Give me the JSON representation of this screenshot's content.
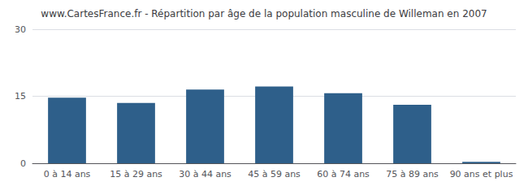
{
  "chart_data": {
    "type": "bar",
    "title": "www.CartesFrance.fr - Répartition par âge de la population masculine de Willeman en 2007",
    "categories": [
      "0 à 14 ans",
      "15 à 29 ans",
      "30 à 44 ans",
      "45 à 59 ans",
      "60 à 74 ans",
      "75 à 89 ans",
      "90 ans et plus"
    ],
    "values": [
      14.7,
      13.5,
      16.5,
      17.2,
      15.7,
      13.1,
      0.3
    ],
    "color": "#2e5f8a",
    "ylim": [
      0,
      30
    ],
    "yticks": [
      0,
      15,
      30
    ],
    "grid": true
  }
}
